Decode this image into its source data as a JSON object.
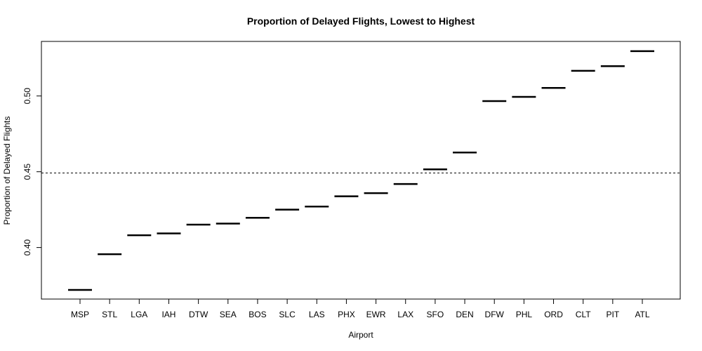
{
  "chart_data": {
    "type": "dot",
    "title": "Proportion of Delayed Flights, Lowest to Highest",
    "xlabel": "Airport",
    "ylabel": "Proportion of Delayed Flights",
    "categories": [
      "MSP",
      "STL",
      "LGA",
      "IAH",
      "DTW",
      "SEA",
      "BOS",
      "SLC",
      "LAS",
      "PHX",
      "EWR",
      "LAX",
      "SFO",
      "DEN",
      "DFW",
      "PHL",
      "ORD",
      "CLT",
      "PIT",
      "ATL"
    ],
    "values": [
      0.372,
      0.3956,
      0.4081,
      0.4093,
      0.4151,
      0.4158,
      0.4196,
      0.425,
      0.427,
      0.4338,
      0.4359,
      0.4419,
      0.4516,
      0.4627,
      0.4966,
      0.4994,
      0.5053,
      0.5166,
      0.5197,
      0.5296
    ],
    "reference_line": {
      "value": 0.4492,
      "style": "dashed"
    },
    "y_ticks": [
      0.4,
      0.45,
      0.5
    ],
    "y_tick_labels": [
      "0.40",
      "0.45",
      "0.50"
    ],
    "ylim": [
      0.366,
      0.536
    ],
    "grid": false,
    "mark_color": "#000000"
  }
}
